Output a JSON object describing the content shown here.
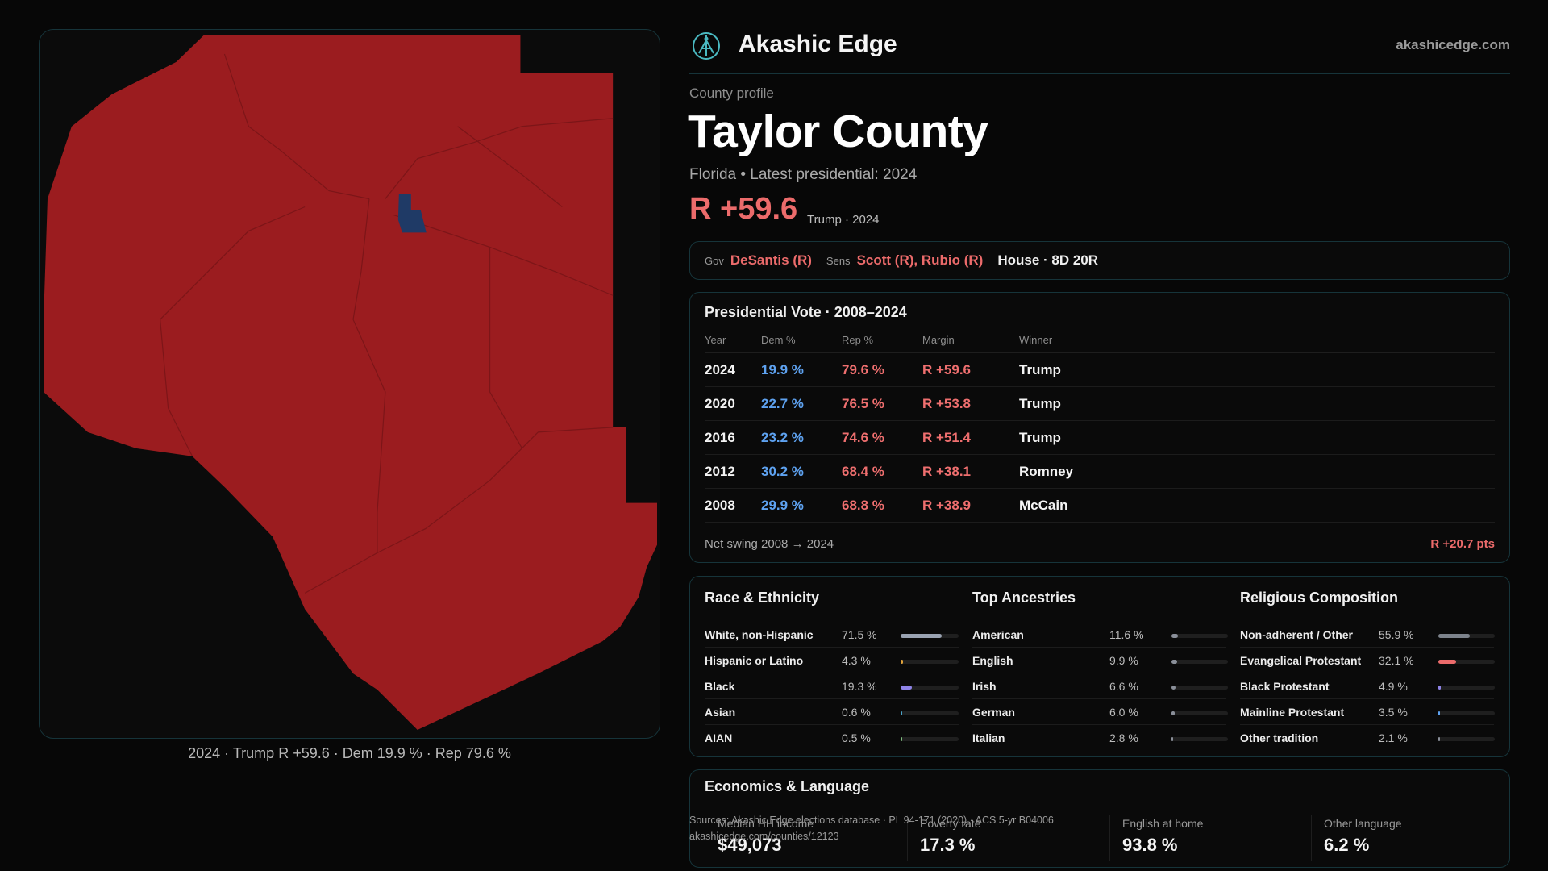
{
  "brand": {
    "name": "Akashic Edge",
    "url": "akashicedge.com",
    "logo_icon": "akashic-edge-logo-icon"
  },
  "profile": {
    "eyebrow": "County profile",
    "title": "Taylor County",
    "subtitle": "Florida • Latest presidential: 2024",
    "margin": "R +59.6",
    "margin_meta": "Trump · 2024"
  },
  "officials": {
    "gov_label": "Gov",
    "gov": "DeSantis (R)",
    "sens_label": "Sens",
    "sens": "Scott (R), Rubio (R)",
    "house": "House · 8D 20R"
  },
  "presidential": {
    "title": "Presidential Vote · 2008–2024",
    "headers": [
      "Year",
      "Dem %",
      "Rep %",
      "Margin",
      "Winner"
    ],
    "rows": [
      {
        "year": "2024",
        "dem": "19.9 %",
        "rep": "79.6 %",
        "margin": "R +59.6",
        "winner": "Trump"
      },
      {
        "year": "2020",
        "dem": "22.7 %",
        "rep": "76.5 %",
        "margin": "R +53.8",
        "winner": "Trump"
      },
      {
        "year": "2016",
        "dem": "23.2 %",
        "rep": "74.6 %",
        "margin": "R +51.4",
        "winner": "Trump"
      },
      {
        "year": "2012",
        "dem": "30.2 %",
        "rep": "68.4 %",
        "margin": "R +38.1",
        "winner": "Romney"
      },
      {
        "year": "2008",
        "dem": "29.9 %",
        "rep": "68.8 %",
        "margin": "R +38.9",
        "winner": "McCain"
      }
    ],
    "swing_label": "Net swing 2008 → 2024",
    "swing_value": "R +20.7 pts"
  },
  "race": {
    "title": "Race & Ethnicity",
    "rows": [
      {
        "label": "White, non-Hispanic",
        "pct": "71.5 %",
        "value": 71.5,
        "color": "#9aa3b2"
      },
      {
        "label": "Hispanic or Latino",
        "pct": "4.3 %",
        "value": 4.3,
        "color": "#e0a23a"
      },
      {
        "label": "Black",
        "pct": "19.3 %",
        "value": 19.3,
        "color": "#8f84e8"
      },
      {
        "label": "Asian",
        "pct": "0.6 %",
        "value": 0.6,
        "color": "#4aa3c8"
      },
      {
        "label": "AIAN",
        "pct": "0.5 %",
        "value": 0.5,
        "color": "#7fbf7f"
      }
    ]
  },
  "ancestry": {
    "title": "Top Ancestries",
    "rows": [
      {
        "label": "American",
        "pct": "11.6 %",
        "value": 11.6,
        "color": "#8a8f99"
      },
      {
        "label": "English",
        "pct": "9.9 %",
        "value": 9.9,
        "color": "#8a8f99"
      },
      {
        "label": "Irish",
        "pct": "6.6 %",
        "value": 6.6,
        "color": "#8a8f99"
      },
      {
        "label": "German",
        "pct": "6.0 %",
        "value": 6.0,
        "color": "#8a8f99"
      },
      {
        "label": "Italian",
        "pct": "2.8 %",
        "value": 2.8,
        "color": "#8a8f99"
      }
    ]
  },
  "religion": {
    "title": "Religious Composition",
    "rows": [
      {
        "label": "Non-adherent / Other",
        "pct": "55.9 %",
        "value": 55.9,
        "color": "#7d838c"
      },
      {
        "label": "Evangelical Protestant",
        "pct": "32.1 %",
        "value": 32.1,
        "color": "#ec6b6b"
      },
      {
        "label": "Black Protestant",
        "pct": "4.9 %",
        "value": 4.9,
        "color": "#8f84e8"
      },
      {
        "label": "Mainline Protestant",
        "pct": "3.5 %",
        "value": 3.5,
        "color": "#5ea2f0"
      },
      {
        "label": "Other tradition",
        "pct": "2.1 %",
        "value": 2.1,
        "color": "#8a8f99"
      }
    ]
  },
  "economics": {
    "title": "Economics & Language",
    "cells": [
      {
        "label": "Median HH income",
        "value": "$49,073"
      },
      {
        "label": "Poverty rate",
        "value": "17.3 %"
      },
      {
        "label": "English at home",
        "value": "93.8 %"
      },
      {
        "label": "Other language",
        "value": "6.2 %"
      }
    ]
  },
  "sources": {
    "line1": "Sources: Akashic Edge elections database · PL 94-171 (2020) · ACS 5-yr B04006",
    "line2": "akashicedge.com/counties/12123"
  },
  "map": {
    "caption": "2024 · Trump R +59.6 · Dem 19.9 % · Rep 79.6 %",
    "rep_color": "#9b1c1f",
    "dem_color": "#1f3a66",
    "boundary_color": "#7c1518"
  }
}
